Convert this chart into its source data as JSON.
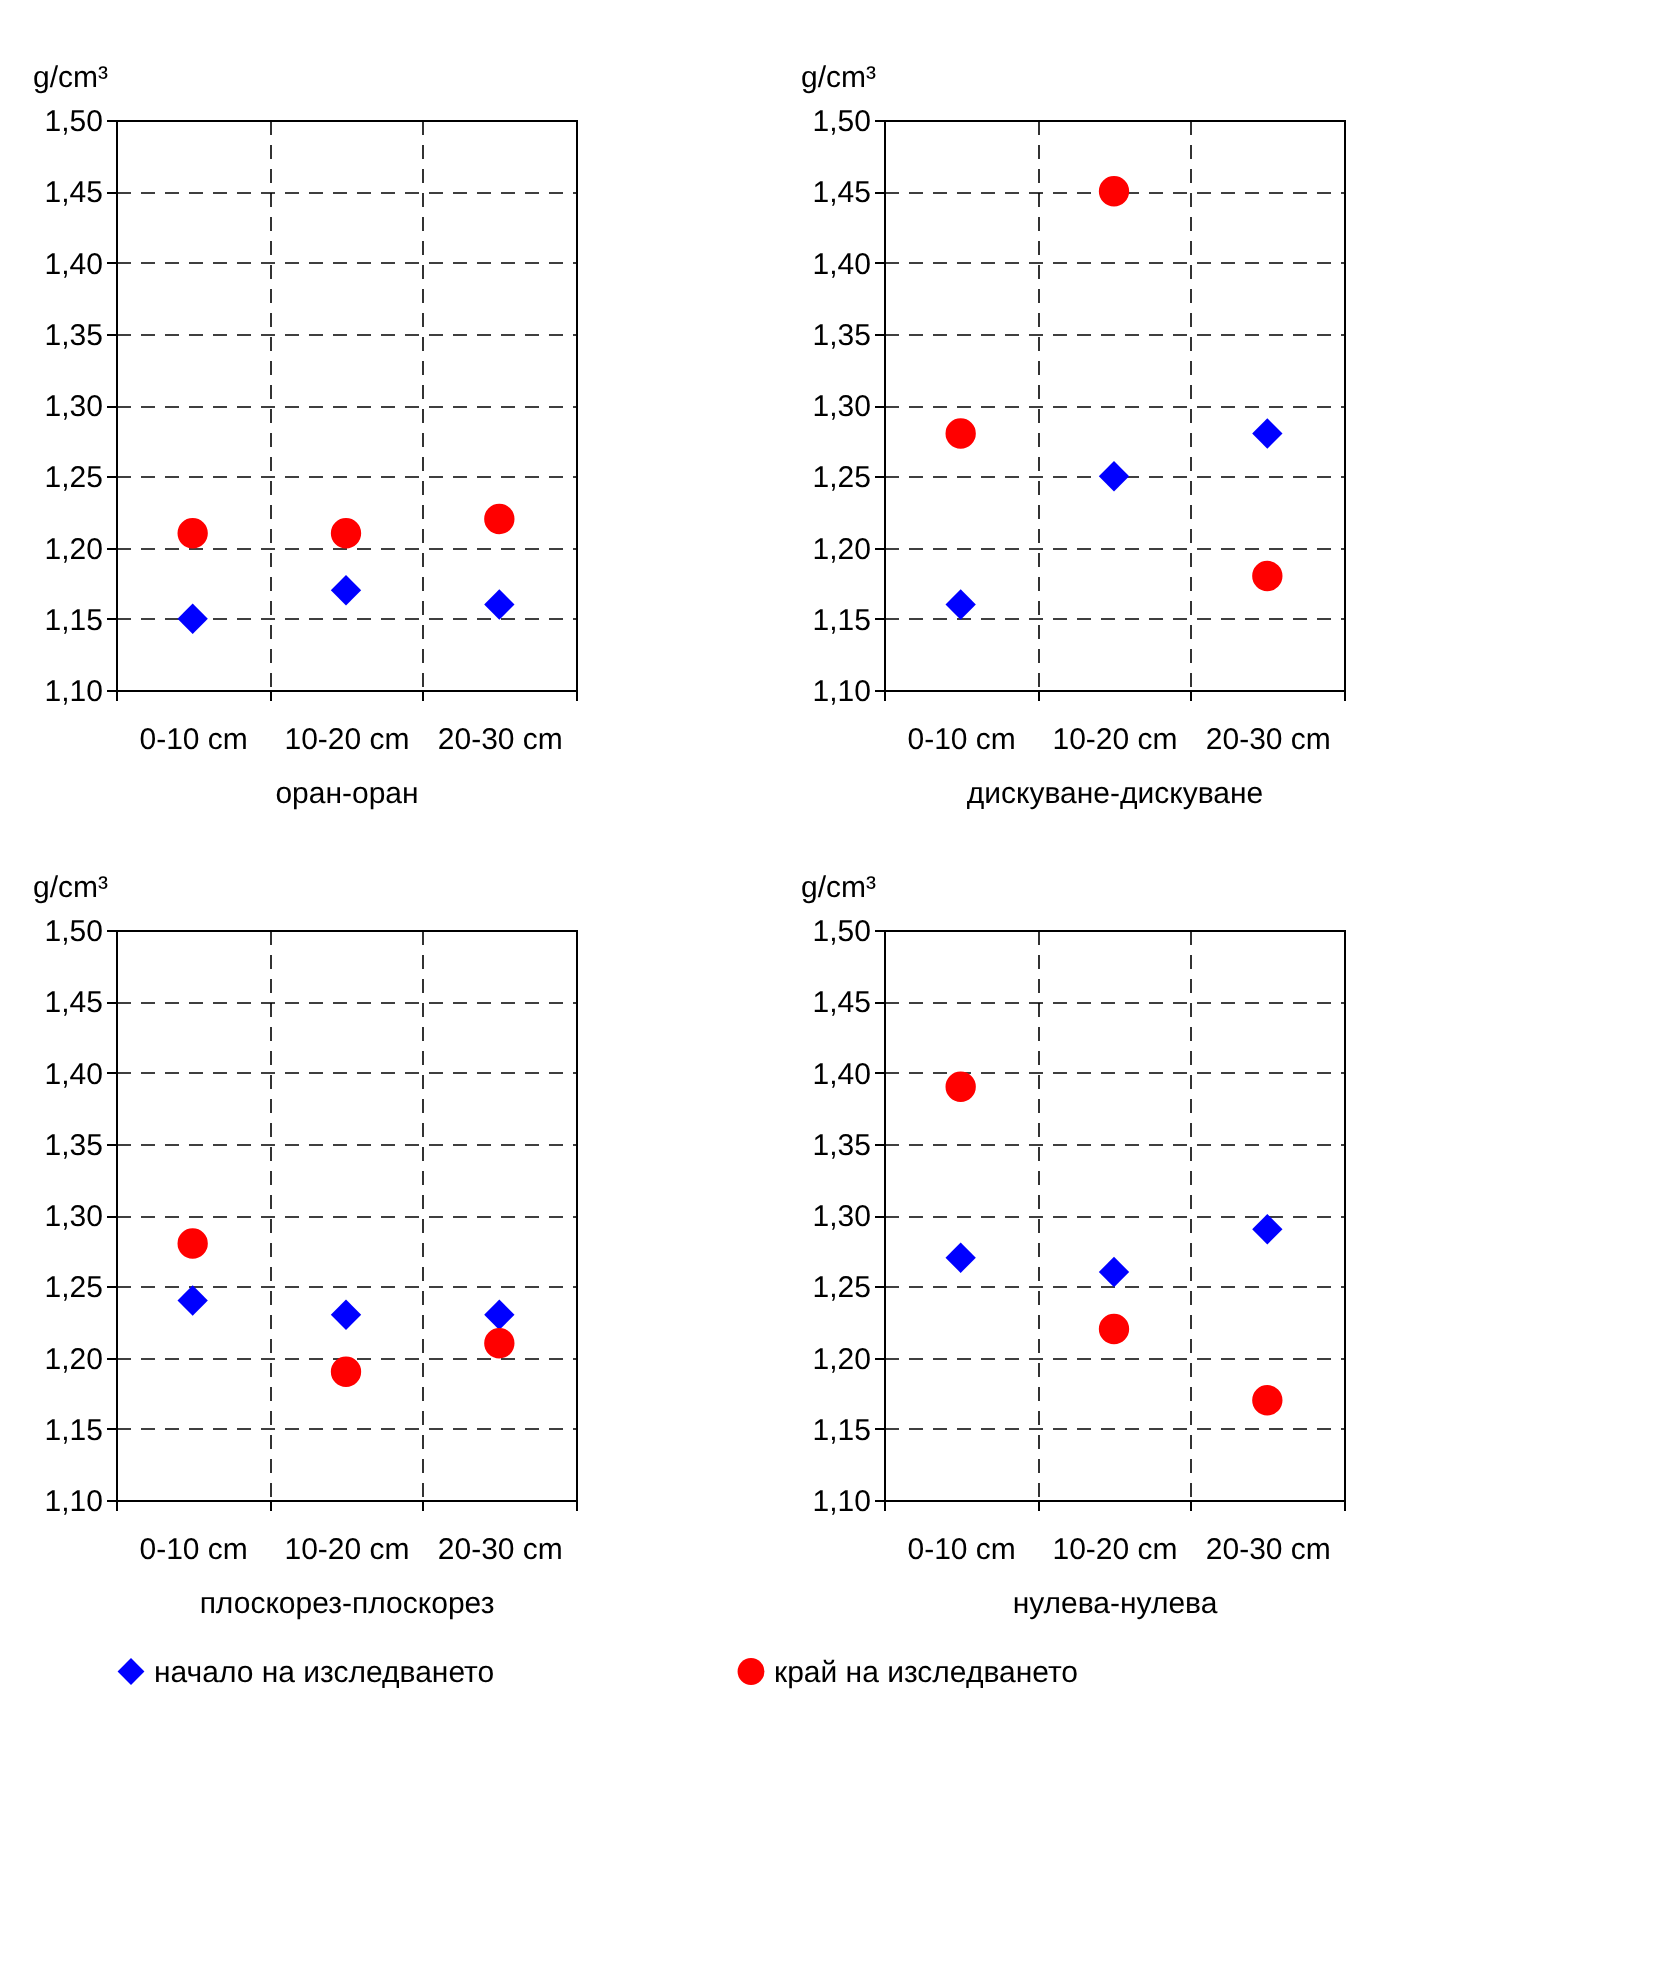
{
  "chart_data": [
    {
      "type": "scatter",
      "xlabel": "оран-оран",
      "ylabel": "g/cm³",
      "categories": [
        "0-10 cm",
        "10-20 cm",
        "20-30 cm"
      ],
      "ylim": [
        1.1,
        1.5
      ],
      "yticks": [
        {
          "value": 1.1,
          "label": "1,10"
        },
        {
          "value": 1.15,
          "label": "1,15"
        },
        {
          "value": 1.2,
          "label": "1,20"
        },
        {
          "value": 1.25,
          "label": "1,25"
        },
        {
          "value": 1.3,
          "label": "1,30"
        },
        {
          "value": 1.35,
          "label": "1,35"
        },
        {
          "value": 1.4,
          "label": "1,40"
        },
        {
          "value": 1.45,
          "label": "1,45"
        },
        {
          "value": 1.5,
          "label": "1,50"
        }
      ],
      "grid": true,
      "legend": "bottom",
      "series": [
        {
          "name": "начало на изследването",
          "color": "#0000ff",
          "marker": "diamond",
          "values": [
            1.15,
            1.17,
            1.16
          ]
        },
        {
          "name": "край на изследването",
          "color": "#ff0000",
          "marker": "circle",
          "values": [
            1.21,
            1.21,
            1.22
          ]
        }
      ]
    },
    {
      "type": "scatter",
      "xlabel": "дискуване-дискуване",
      "ylabel": "g/cm³",
      "categories": [
        "0-10 cm",
        "10-20 cm",
        "20-30 cm"
      ],
      "ylim": [
        1.1,
        1.5
      ],
      "yticks": [
        {
          "value": 1.1,
          "label": "1,10"
        },
        {
          "value": 1.15,
          "label": "1,15"
        },
        {
          "value": 1.2,
          "label": "1,20"
        },
        {
          "value": 1.25,
          "label": "1,25"
        },
        {
          "value": 1.3,
          "label": "1,30"
        },
        {
          "value": 1.35,
          "label": "1,35"
        },
        {
          "value": 1.4,
          "label": "1,40"
        },
        {
          "value": 1.45,
          "label": "1,45"
        },
        {
          "value": 1.5,
          "label": "1,50"
        }
      ],
      "grid": true,
      "legend": "bottom",
      "series": [
        {
          "name": "начало на изследването",
          "color": "#0000ff",
          "marker": "diamond",
          "values": [
            1.16,
            1.25,
            1.28
          ]
        },
        {
          "name": "край на изследването",
          "color": "#ff0000",
          "marker": "circle",
          "values": [
            1.28,
            1.45,
            1.18
          ]
        }
      ]
    },
    {
      "type": "scatter",
      "xlabel": "плоскорез-плоскорез",
      "ylabel": "g/cm³",
      "categories": [
        "0-10 cm",
        "10-20 cm",
        "20-30 cm"
      ],
      "ylim": [
        1.1,
        1.5
      ],
      "yticks": [
        {
          "value": 1.1,
          "label": "1,10"
        },
        {
          "value": 1.15,
          "label": "1,15"
        },
        {
          "value": 1.2,
          "label": "1,20"
        },
        {
          "value": 1.25,
          "label": "1,25"
        },
        {
          "value": 1.3,
          "label": "1,30"
        },
        {
          "value": 1.35,
          "label": "1,35"
        },
        {
          "value": 1.4,
          "label": "1,40"
        },
        {
          "value": 1.45,
          "label": "1,45"
        },
        {
          "value": 1.5,
          "label": "1,50"
        }
      ],
      "grid": true,
      "legend": "bottom",
      "series": [
        {
          "name": "начало на изследването",
          "color": "#0000ff",
          "marker": "diamond",
          "values": [
            1.24,
            1.23,
            1.23
          ]
        },
        {
          "name": "край на изследването",
          "color": "#ff0000",
          "marker": "circle",
          "values": [
            1.28,
            1.19,
            1.21
          ]
        }
      ]
    },
    {
      "type": "scatter",
      "xlabel": "нулева-нулева",
      "ylabel": "g/cm³",
      "categories": [
        "0-10 cm",
        "10-20 cm",
        "20-30 cm"
      ],
      "ylim": [
        1.1,
        1.5
      ],
      "yticks": [
        {
          "value": 1.1,
          "label": "1,10"
        },
        {
          "value": 1.15,
          "label": "1,15"
        },
        {
          "value": 1.2,
          "label": "1,20"
        },
        {
          "value": 1.25,
          "label": "1,25"
        },
        {
          "value": 1.3,
          "label": "1,30"
        },
        {
          "value": 1.35,
          "label": "1,35"
        },
        {
          "value": 1.4,
          "label": "1,40"
        },
        {
          "value": 1.45,
          "label": "1,45"
        },
        {
          "value": 1.5,
          "label": "1,50"
        }
      ],
      "grid": true,
      "legend": "bottom",
      "series": [
        {
          "name": "начало на изследването",
          "color": "#0000ff",
          "marker": "diamond",
          "values": [
            1.27,
            1.26,
            1.29
          ]
        },
        {
          "name": "край на изследването",
          "color": "#ff0000",
          "marker": "circle",
          "values": [
            1.39,
            1.22,
            1.17
          ]
        }
      ]
    }
  ]
}
